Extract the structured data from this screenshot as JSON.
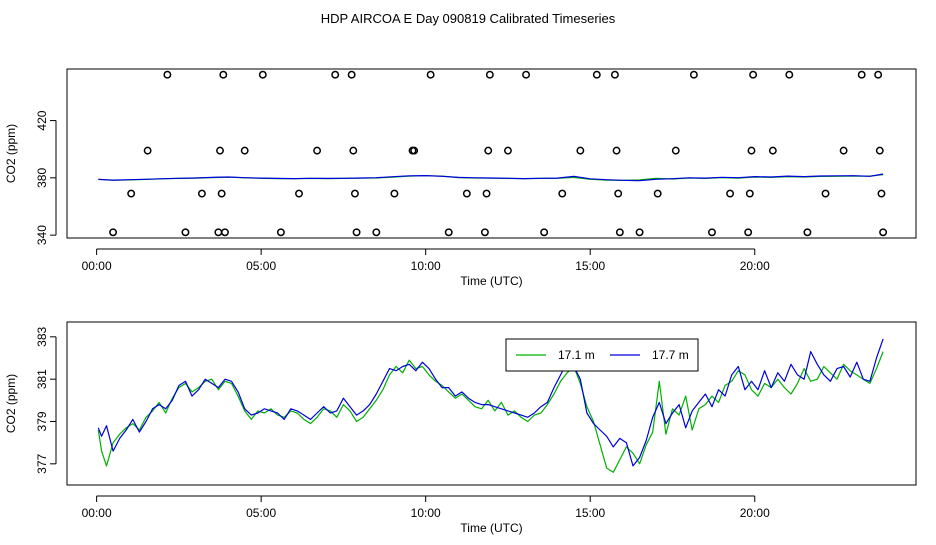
{
  "title": "HDP AIRCOA E  Day 090819  Calibrated Timeseries",
  "chart_data": [
    {
      "type": "line",
      "xlabel": "Time (UTC)",
      "ylabel": "CO2 (ppm)",
      "x_ticks": [
        {
          "hour": 0,
          "label": "00:00"
        },
        {
          "hour": 5,
          "label": "05:00"
        },
        {
          "hour": 10,
          "label": "10:00"
        },
        {
          "hour": 15,
          "label": "15:00"
        },
        {
          "hour": 20,
          "label": "20:00"
        }
      ],
      "y_ticks": [
        340,
        380,
        420
      ],
      "xlim": [
        -0.9,
        24.9
      ],
      "ylim": [
        338,
        456
      ],
      "series": [
        {
          "color": "#00b000",
          "x": [
            0.05,
            0.5,
            1,
            1.5,
            2,
            2.5,
            3,
            3.5,
            4,
            4.5,
            5,
            5.5,
            6,
            6.5,
            7,
            7.5,
            8,
            8.5,
            9,
            9.5,
            10,
            10.5,
            11,
            11.5,
            12,
            12.5,
            13,
            13.5,
            14,
            14.5,
            15,
            15.5,
            16,
            16.5,
            17,
            17.5,
            18,
            18.5,
            19,
            19.5,
            20,
            20.5,
            21,
            21.5,
            22,
            22.5,
            23,
            23.5,
            23.9
          ],
          "y": [
            379.0,
            378.3,
            378.6,
            378.9,
            379.3,
            379.6,
            379.8,
            380.2,
            380.5,
            380.0,
            379.7,
            379.5,
            379.4,
            379.6,
            379.5,
            379.6,
            379.8,
            379.9,
            380.5,
            381.2,
            381.5,
            381.2,
            380.2,
            379.9,
            379.8,
            379.6,
            379.4,
            379.6,
            379.7,
            380.3,
            379.0,
            378.4,
            378.2,
            378.6,
            379.6,
            379.2,
            379.9,
            379.6,
            380.2,
            379.8,
            380.6,
            380.3,
            380.9,
            380.6,
            381.0,
            381.1,
            381.3,
            381.2,
            382.3
          ]
        },
        {
          "color": "#0000e0",
          "x": [
            0.05,
            0.5,
            1,
            1.5,
            2,
            2.5,
            3,
            3.5,
            4,
            4.5,
            5,
            5.5,
            6,
            6.5,
            7,
            7.5,
            8,
            8.5,
            9,
            9.5,
            10,
            10.5,
            11,
            11.5,
            12,
            12.5,
            13,
            13.5,
            14,
            14.5,
            15,
            15.5,
            16,
            16.5,
            17,
            17.5,
            18,
            18.5,
            19,
            19.5,
            20,
            20.5,
            21,
            21.5,
            22,
            22.5,
            23,
            23.5,
            23.9
          ],
          "y": [
            378.9,
            378.4,
            378.7,
            379.0,
            379.4,
            379.7,
            379.9,
            380.3,
            380.6,
            380.1,
            379.8,
            379.6,
            379.5,
            379.7,
            379.6,
            379.7,
            379.9,
            380.1,
            380.8,
            381.4,
            381.6,
            381.1,
            380.3,
            380.0,
            379.9,
            379.7,
            379.5,
            379.7,
            379.8,
            381.0,
            379.3,
            378.7,
            378.3,
            378.0,
            379.0,
            379.4,
            380.0,
            379.8,
            380.4,
            380.1,
            380.9,
            380.6,
            381.2,
            380.9,
            381.3,
            381.4,
            381.5,
            381.1,
            382.7
          ]
        }
      ],
      "outliers": {
        "x": [
          0.5,
          1.05,
          1.55,
          2.15,
          2.7,
          3.2,
          3.7,
          3.75,
          3.8,
          3.85,
          3.9,
          4.5,
          5.05,
          5.6,
          6.15,
          6.7,
          7.25,
          7.75,
          7.8,
          7.85,
          7.9,
          8.5,
          9.05,
          9.6,
          9.65,
          10.15,
          10.7,
          11.25,
          11.8,
          11.85,
          11.9,
          11.95,
          12.5,
          13.05,
          13.6,
          14.15,
          14.7,
          15.2,
          15.75,
          15.8,
          15.85,
          15.9,
          16.5,
          17.05,
          17.6,
          18.15,
          18.7,
          19.25,
          19.8,
          19.85,
          19.9,
          19.95,
          20.55,
          21.05,
          21.6,
          22.15,
          22.7,
          23.25,
          23.75,
          23.8,
          23.85,
          23.9
        ],
        "y": [
          342,
          369,
          399,
          452,
          342,
          369,
          342,
          399,
          369,
          452,
          342,
          399,
          452,
          342,
          369,
          399,
          452,
          452,
          399,
          369,
          342,
          342,
          369,
          399,
          399,
          452,
          342,
          369,
          342,
          369,
          399,
          452,
          399,
          452,
          342,
          369,
          399,
          452,
          452,
          399,
          369,
          342,
          342,
          369,
          399,
          452,
          342,
          369,
          342,
          369,
          399,
          452,
          399,
          452,
          342,
          369,
          399,
          452,
          452,
          399,
          369,
          342
        ]
      }
    },
    {
      "type": "line",
      "xlabel": "Time (UTC)",
      "ylabel": "CO2 (ppm)",
      "x_ticks": [
        {
          "hour": 0,
          "label": "00:00"
        },
        {
          "hour": 5,
          "label": "05:00"
        },
        {
          "hour": 10,
          "label": "10:00"
        },
        {
          "hour": 15,
          "label": "15:00"
        },
        {
          "hour": 20,
          "label": "20:00"
        }
      ],
      "y_ticks": [
        377,
        379,
        381,
        383
      ],
      "xlim": [
        -0.9,
        24.9
      ],
      "ylim": [
        376.0,
        383.7
      ],
      "legend_position": "top-right",
      "series": [
        {
          "name": "17.1 m",
          "color": "#00b000",
          "x": [
            0.05,
            0.15,
            0.3,
            0.5,
            0.7,
            0.9,
            1.1,
            1.3,
            1.5,
            1.7,
            1.9,
            2.1,
            2.3,
            2.5,
            2.7,
            2.9,
            3.1,
            3.3,
            3.5,
            3.7,
            3.9,
            4.1,
            4.3,
            4.5,
            4.7,
            4.9,
            5.1,
            5.3,
            5.5,
            5.7,
            5.9,
            6.1,
            6.3,
            6.5,
            6.7,
            6.9,
            7.1,
            7.3,
            7.5,
            7.7,
            7.9,
            8.1,
            8.3,
            8.5,
            8.7,
            8.9,
            9.1,
            9.3,
            9.5,
            9.7,
            9.9,
            10.1,
            10.3,
            10.5,
            10.7,
            10.9,
            11.1,
            11.3,
            11.5,
            11.7,
            11.9,
            12.1,
            12.3,
            12.5,
            12.7,
            12.9,
            13.1,
            13.3,
            13.5,
            13.7,
            13.9,
            14.1,
            14.3,
            14.5,
            14.7,
            14.9,
            15.1,
            15.3,
            15.5,
            15.7,
            15.9,
            16.1,
            16.3,
            16.5,
            16.7,
            16.9,
            17.1,
            17.3,
            17.5,
            17.7,
            17.9,
            18.1,
            18.3,
            18.5,
            18.7,
            18.9,
            19.1,
            19.3,
            19.5,
            19.7,
            19.9,
            20.1,
            20.3,
            20.5,
            20.7,
            20.9,
            21.1,
            21.3,
            21.5,
            21.7,
            21.9,
            22.1,
            22.3,
            22.5,
            22.7,
            22.9,
            23.1,
            23.3,
            23.5,
            23.7,
            23.9
          ],
          "y": [
            378.6,
            377.6,
            376.9,
            378.0,
            378.4,
            378.7,
            378.9,
            378.6,
            379.2,
            379.5,
            379.9,
            379.4,
            380.1,
            380.6,
            380.8,
            380.4,
            380.6,
            380.9,
            381.0,
            380.5,
            380.9,
            380.8,
            380.2,
            379.5,
            379.1,
            379.5,
            379.4,
            379.6,
            379.3,
            379.2,
            379.5,
            379.4,
            379.1,
            378.9,
            379.2,
            379.6,
            379.5,
            379.2,
            379.8,
            379.5,
            379.0,
            379.2,
            379.6,
            380.0,
            380.5,
            381.2,
            381.6,
            381.3,
            381.9,
            381.5,
            381.6,
            381.2,
            380.9,
            380.7,
            380.4,
            380.1,
            380.3,
            380.0,
            379.7,
            379.6,
            380.0,
            379.5,
            379.9,
            379.3,
            379.5,
            379.2,
            379.0,
            379.3,
            379.4,
            379.8,
            380.3,
            380.9,
            381.3,
            381.6,
            380.8,
            379.7,
            379.0,
            377.9,
            376.8,
            376.6,
            377.2,
            377.8,
            377.5,
            377.0,
            377.9,
            378.5,
            380.9,
            378.4,
            379.6,
            379.3,
            380.2,
            378.6,
            379.6,
            379.8,
            380.2,
            379.9,
            380.7,
            380.9,
            381.4,
            381.2,
            380.5,
            380.2,
            380.8,
            380.6,
            381.0,
            380.6,
            380.3,
            380.8,
            381.5,
            380.9,
            381.0,
            381.6,
            381.3,
            381.0,
            381.7,
            381.4,
            381.2,
            381.0,
            380.8,
            381.5,
            382.3
          ]
        },
        {
          "name": "17.7 m",
          "color": "#0000e0",
          "x": [
            0.05,
            0.15,
            0.3,
            0.5,
            0.7,
            0.9,
            1.1,
            1.3,
            1.5,
            1.7,
            1.9,
            2.1,
            2.3,
            2.5,
            2.7,
            2.9,
            3.1,
            3.3,
            3.5,
            3.7,
            3.9,
            4.1,
            4.3,
            4.5,
            4.7,
            4.9,
            5.1,
            5.3,
            5.5,
            5.7,
            5.9,
            6.1,
            6.3,
            6.5,
            6.7,
            6.9,
            7.1,
            7.3,
            7.5,
            7.7,
            7.9,
            8.1,
            8.3,
            8.5,
            8.7,
            8.9,
            9.1,
            9.3,
            9.5,
            9.7,
            9.9,
            10.1,
            10.3,
            10.5,
            10.7,
            10.9,
            11.1,
            11.3,
            11.5,
            11.7,
            11.9,
            12.1,
            12.3,
            12.5,
            12.7,
            12.9,
            13.1,
            13.3,
            13.5,
            13.7,
            13.9,
            14.1,
            14.3,
            14.5,
            14.7,
            14.9,
            15.1,
            15.3,
            15.5,
            15.7,
            15.9,
            16.1,
            16.3,
            16.5,
            16.7,
            16.9,
            17.1,
            17.3,
            17.5,
            17.7,
            17.9,
            18.1,
            18.3,
            18.5,
            18.7,
            18.9,
            19.1,
            19.3,
            19.5,
            19.7,
            19.9,
            20.1,
            20.3,
            20.5,
            20.7,
            20.9,
            21.1,
            21.3,
            21.5,
            21.7,
            21.9,
            22.1,
            22.3,
            22.5,
            22.7,
            22.9,
            23.1,
            23.3,
            23.5,
            23.7,
            23.9
          ],
          "y": [
            378.7,
            378.3,
            378.8,
            377.6,
            378.2,
            378.6,
            379.1,
            378.5,
            379.0,
            379.6,
            379.8,
            379.6,
            380.0,
            380.7,
            380.9,
            380.2,
            380.5,
            381.0,
            380.8,
            380.6,
            381.0,
            380.9,
            380.4,
            379.6,
            379.3,
            379.4,
            379.6,
            379.5,
            379.4,
            379.1,
            379.6,
            379.5,
            379.3,
            379.1,
            379.4,
            379.7,
            379.4,
            379.5,
            380.1,
            379.7,
            379.3,
            379.5,
            379.8,
            380.3,
            380.9,
            381.5,
            381.4,
            381.6,
            381.7,
            381.4,
            381.8,
            381.5,
            381.0,
            380.6,
            380.6,
            380.2,
            380.4,
            380.1,
            379.9,
            379.8,
            379.8,
            379.7,
            379.6,
            379.5,
            379.4,
            379.3,
            379.2,
            379.4,
            379.7,
            379.9,
            380.6,
            381.2,
            381.8,
            381.6,
            381.0,
            379.4,
            378.9,
            378.6,
            378.3,
            377.8,
            378.2,
            378.0,
            376.9,
            377.3,
            378.1,
            379.2,
            379.9,
            378.9,
            379.4,
            379.8,
            378.7,
            379.5,
            379.9,
            380.3,
            379.7,
            380.5,
            380.2,
            381.2,
            381.6,
            380.5,
            380.9,
            380.5,
            381.4,
            380.6,
            381.3,
            380.9,
            381.7,
            381.2,
            381.0,
            382.3,
            381.7,
            381.2,
            380.9,
            381.5,
            381.6,
            381.1,
            381.8,
            381.0,
            380.9,
            382.0,
            382.9
          ]
        }
      ]
    }
  ]
}
